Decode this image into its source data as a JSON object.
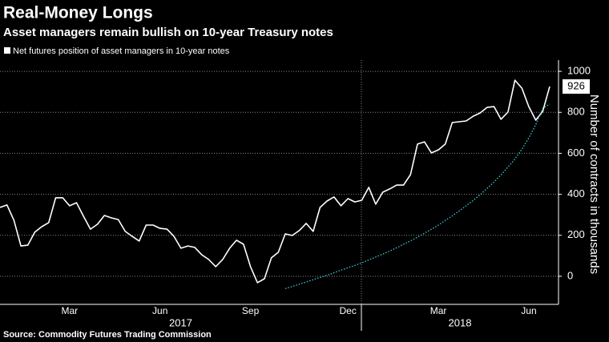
{
  "chart_data": {
    "type": "line",
    "title": "Real-Money Longs",
    "subtitle": "Asset managers remain bullish on 10-year Treasury notes",
    "y_axis_label": "Number of contracts in thousands",
    "source": "Source: Commodity Futures Trading Commission",
    "categories": [
      null,
      null,
      null,
      null,
      null,
      null,
      null,
      null,
      null,
      null,
      "Mar",
      null,
      null,
      null,
      null,
      null,
      null,
      null,
      null,
      null,
      null,
      null,
      null,
      "Jun",
      null,
      null,
      null,
      null,
      null,
      null,
      null,
      null,
      null,
      null,
      null,
      null,
      "Sep",
      null,
      null,
      null,
      null,
      null,
      null,
      null,
      null,
      null,
      null,
      null,
      null,
      null,
      "Dec",
      null,
      null,
      null,
      null,
      null,
      null,
      null,
      null,
      null,
      null,
      null,
      null,
      "Mar",
      null,
      null,
      null,
      null,
      null,
      null,
      null,
      null,
      null,
      null,
      null,
      null,
      "Jun",
      null,
      null,
      null
    ],
    "years": [
      "2017",
      "2018"
    ],
    "series": [
      {
        "name": "Net futures position of asset managers in 10-year notes",
        "color": "#ffffff",
        "values": [
          336,
          348,
          273,
          148,
          152,
          215,
          242,
          262,
          383,
          383,
          344,
          359,
          293,
          230,
          254,
          297,
          285,
          277,
          219,
          195,
          172,
          250,
          250,
          234,
          230,
          195,
          137,
          148,
          141,
          105,
          82,
          47,
          82,
          137,
          176,
          156,
          47,
          -31,
          -12,
          90,
          117,
          207,
          199,
          223,
          258,
          219,
          336,
          367,
          387,
          344,
          379,
          363,
          371,
          434,
          352,
          410,
          426,
          445,
          445,
          496,
          645,
          656,
          602,
          617,
          645,
          750,
          754,
          758,
          781,
          797,
          824,
          828,
          766,
          801,
          957,
          918,
          828,
          762,
          805,
          926
        ]
      },
      {
        "color": "#3fc8d8",
        "values": [
          null,
          null,
          null,
          null,
          null,
          null,
          null,
          null,
          null,
          null,
          null,
          null,
          null,
          null,
          null,
          null,
          null,
          null,
          null,
          null,
          null,
          null,
          null,
          null,
          null,
          null,
          null,
          null,
          null,
          null,
          null,
          null,
          null,
          null,
          null,
          null,
          null,
          null,
          null,
          null,
          null,
          -60,
          -50,
          -39,
          -28,
          -17,
          -6,
          5,
          17,
          30,
          42,
          53,
          66,
          80,
          94,
          108,
          123,
          139,
          156,
          173,
          191,
          210,
          230,
          250,
          272,
          295,
          319,
          344,
          370,
          398,
          428,
          460,
          495,
          533,
          572,
          620,
          675,
          740,
          820,
          840
        ]
      }
    ],
    "ylim": [
      -137,
      1055
    ],
    "yticks": [
      0,
      200,
      400,
      600,
      800,
      1000
    ],
    "grid": true
  }
}
